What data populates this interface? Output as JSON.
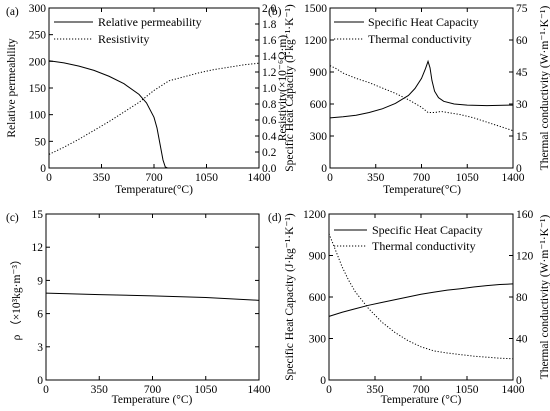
{
  "chart_data": [
    {
      "panel_label": "(a)",
      "type": "line",
      "xlabel": "Temperature(°C)",
      "ylabel": "Relative permeability",
      "ylabel_right": "Resistivity(×10⁻⁶Ω·m)",
      "xlim": [
        0,
        1400
      ],
      "ylim": [
        0,
        300
      ],
      "ylim_right": [
        0,
        2.0
      ],
      "xticks": [
        "0",
        "350",
        "700",
        "1050",
        "1400"
      ],
      "yticks": [
        "0",
        "50",
        "100",
        "150",
        "200",
        "250",
        "300"
      ],
      "yticks_right": [
        "0.0",
        "0.2",
        "0.4",
        "0.6",
        "0.8",
        "1.0",
        "1.2",
        "1.4",
        "1.6",
        "1.8",
        "2.0"
      ],
      "legend_position": "top-right",
      "series": [
        {
          "name": "Relative permeability",
          "style": "solid",
          "axis": "left",
          "x": [
            0,
            100,
            200,
            300,
            400,
            500,
            600,
            650,
            700,
            720,
            740,
            760,
            775,
            790,
            1400
          ],
          "y": [
            201,
            197,
            191,
            183,
            172,
            158,
            138,
            122,
            95,
            75,
            45,
            15,
            2,
            0,
            0
          ]
        },
        {
          "name": "Resistivity",
          "style": "dotted",
          "axis": "right",
          "x": [
            0,
            100,
            200,
            300,
            400,
            500,
            600,
            700,
            800,
            900,
            1000,
            1100,
            1200,
            1300,
            1400
          ],
          "y": [
            0.17,
            0.26,
            0.36,
            0.47,
            0.58,
            0.7,
            0.82,
            0.97,
            1.09,
            1.14,
            1.19,
            1.23,
            1.26,
            1.29,
            1.31
          ]
        }
      ]
    },
    {
      "panel_label": "(b)",
      "type": "line",
      "xlabel": "Temperature(°C)",
      "ylabel": "Specific Heat Capacity (J·kg⁻¹·K⁻¹)",
      "ylabel_right": "Thermal conductivity (W·m⁻¹·K⁻¹)",
      "xlim": [
        0,
        1400
      ],
      "ylim": [
        0,
        1500
      ],
      "ylim_right": [
        0,
        75
      ],
      "xticks": [
        "0",
        "350",
        "700",
        "1050",
        "1400"
      ],
      "yticks": [
        "0",
        "300",
        "600",
        "900",
        "1200",
        "1500"
      ],
      "yticks_right": [
        "0",
        "15",
        "30",
        "45",
        "60",
        "75"
      ],
      "legend_position": "top-right",
      "series": [
        {
          "name": "Specific Heat Capacity",
          "style": "solid",
          "axis": "left",
          "x": [
            0,
            100,
            200,
            300,
            400,
            500,
            600,
            650,
            700,
            730,
            750,
            765,
            780,
            800,
            830,
            870,
            950,
            1050,
            1200,
            1400
          ],
          "y": [
            470,
            480,
            495,
            520,
            555,
            605,
            680,
            745,
            840,
            930,
            1000,
            940,
            820,
            720,
            660,
            625,
            600,
            590,
            585,
            590
          ]
        },
        {
          "name": "Thermal conductivity",
          "style": "dotted",
          "axis": "right",
          "x": [
            0,
            50,
            100,
            200,
            300,
            400,
            500,
            600,
            700,
            750,
            800,
            850,
            900,
            1000,
            1100,
            1200,
            1300,
            1400
          ],
          "y": [
            48,
            46.5,
            44.5,
            42,
            40,
            37.5,
            35,
            32,
            28.5,
            26,
            26,
            26.5,
            26,
            25,
            23.5,
            21.5,
            19.5,
            17.5
          ]
        }
      ]
    },
    {
      "panel_label": "(c)",
      "type": "line",
      "xlabel": "Temperature (°C)",
      "ylabel": "ρ （×10³kg·m⁻³）",
      "xlim": [
        0,
        1400
      ],
      "ylim": [
        0,
        15
      ],
      "xticks": [
        "0",
        "350",
        "700",
        "1050",
        "1400"
      ],
      "yticks": [
        "0",
        "3",
        "6",
        "9",
        "12",
        "15"
      ],
      "series": [
        {
          "style": "solid",
          "axis": "left",
          "x": [
            0,
            350,
            700,
            1050,
            1400
          ],
          "y": [
            7.85,
            7.72,
            7.6,
            7.45,
            7.2
          ]
        }
      ]
    },
    {
      "panel_label": "(d)",
      "type": "line",
      "xlabel": "Temperature (°C)",
      "ylabel": "Specific Heat Capacity (J·kg⁻¹·K⁻¹)",
      "ylabel_right": "Thermal conductivity (W·m⁻¹·K⁻¹)",
      "xlim": [
        0,
        1400
      ],
      "ylim": [
        0,
        1200
      ],
      "ylim_right": [
        0,
        160
      ],
      "xticks": [
        "0",
        "350",
        "700",
        "1050",
        "1400"
      ],
      "yticks": [
        "0",
        "300",
        "600",
        "900",
        "1200"
      ],
      "yticks_right": [
        "0",
        "40",
        "80",
        "120",
        "160"
      ],
      "legend_position": "top-right",
      "series": [
        {
          "name": "Specific Heat Capacity",
          "style": "solid",
          "axis": "left",
          "x": [
            0,
            100,
            200,
            300,
            400,
            500,
            600,
            700,
            800,
            900,
            1000,
            1100,
            1200,
            1300,
            1400
          ],
          "y": [
            460,
            490,
            515,
            540,
            560,
            580,
            600,
            620,
            635,
            650,
            660,
            672,
            682,
            690,
            695
          ]
        },
        {
          "name": "Thermal conductivity",
          "style": "dotted",
          "axis": "right",
          "x": [
            0,
            50,
            100,
            150,
            200,
            300,
            400,
            500,
            600,
            700,
            800,
            900,
            1000,
            1100,
            1200,
            1300,
            1400
          ],
          "y": [
            141,
            125,
            109,
            96,
            85,
            69,
            56,
            46,
            38,
            32,
            28,
            26,
            24.5,
            23,
            22,
            21,
            20.5
          ]
        }
      ]
    }
  ]
}
